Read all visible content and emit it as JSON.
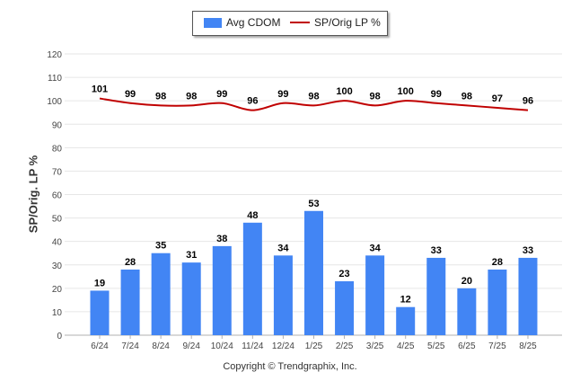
{
  "chart_data": {
    "type": "bar",
    "categories": [
      "6/24",
      "7/24",
      "8/24",
      "9/24",
      "10/24",
      "11/24",
      "12/24",
      "1/25",
      "2/25",
      "3/25",
      "4/25",
      "5/25",
      "6/25",
      "7/25",
      "8/25"
    ],
    "series": [
      {
        "name": "Avg CDOM",
        "type": "bar",
        "color": "#4285f4",
        "values": [
          19,
          28,
          35,
          31,
          38,
          48,
          34,
          53,
          23,
          34,
          12,
          33,
          20,
          28,
          33
        ]
      },
      {
        "name": "SP/Orig LP %",
        "type": "line",
        "color": "#c00000",
        "values": [
          101,
          99,
          98,
          98,
          99,
          96,
          99,
          98,
          100,
          98,
          100,
          99,
          98,
          97,
          96
        ]
      }
    ],
    "ylabel": "SP/Orig. LP %",
    "ylim": [
      0,
      120
    ],
    "yticks": [
      0,
      10,
      20,
      30,
      40,
      50,
      60,
      70,
      80,
      90,
      100,
      110,
      120
    ],
    "grid": true,
    "legend_position": "top-center"
  },
  "footer": {
    "copyright": "Copyright © Trendgraphix, Inc."
  }
}
